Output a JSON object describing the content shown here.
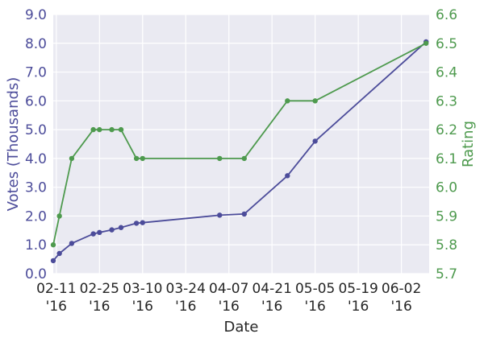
{
  "chart_data": {
    "type": "line",
    "xlabel": "Date",
    "x_ticks": [
      {
        "date": "2016-02-11",
        "label_line1": "02-11",
        "label_line2": "'16"
      },
      {
        "date": "2016-02-25",
        "label_line1": "02-25",
        "label_line2": "'16"
      },
      {
        "date": "2016-03-10",
        "label_line1": "03-10",
        "label_line2": "'16"
      },
      {
        "date": "2016-03-24",
        "label_line1": "03-24",
        "label_line2": "'16"
      },
      {
        "date": "2016-04-07",
        "label_line1": "04-07",
        "label_line2": "'16"
      },
      {
        "date": "2016-04-21",
        "label_line1": "04-21",
        "label_line2": "'16"
      },
      {
        "date": "2016-05-05",
        "label_line1": "05-05",
        "label_line2": "'16"
      },
      {
        "date": "2016-05-19",
        "label_line1": "05-19",
        "label_line2": "'16"
      },
      {
        "date": "2016-06-02",
        "label_line1": "06-02",
        "label_line2": "'16"
      }
    ],
    "xlim": [
      "2016-02-10",
      "2016-06-11"
    ],
    "grid": true,
    "left_axis": {
      "label": "Votes (Thousands)",
      "ylim": [
        0,
        9
      ],
      "ticks": [
        "0.0",
        "1.0",
        "2.0",
        "3.0",
        "4.0",
        "5.0",
        "6.0",
        "7.0",
        "8.0",
        "9.0"
      ],
      "color": "#4c4c9a"
    },
    "right_axis": {
      "label": "Rating",
      "ylim": [
        5.7,
        6.6
      ],
      "ticks": [
        "5.7",
        "5.8",
        "5.9",
        "6.0",
        "6.1",
        "6.2",
        "6.3",
        "6.4",
        "6.5",
        "6.6"
      ],
      "color": "#4e9a4e"
    },
    "series": [
      {
        "axis": "left",
        "color": "#4c4c9a",
        "points": [
          {
            "x": "2016-02-10",
            "y": 0.45
          },
          {
            "x": "2016-02-12",
            "y": 0.7
          },
          {
            "x": "2016-02-16",
            "y": 1.05
          },
          {
            "x": "2016-02-23",
            "y": 1.38
          },
          {
            "x": "2016-02-25",
            "y": 1.43
          },
          {
            "x": "2016-02-29",
            "y": 1.52
          },
          {
            "x": "2016-03-03",
            "y": 1.6
          },
          {
            "x": "2016-03-08",
            "y": 1.75
          },
          {
            "x": "2016-03-10",
            "y": 1.77
          },
          {
            "x": "2016-04-04",
            "y": 2.03
          },
          {
            "x": "2016-04-12",
            "y": 2.07
          },
          {
            "x": "2016-04-26",
            "y": 3.4
          },
          {
            "x": "2016-05-05",
            "y": 4.6
          },
          {
            "x": "2016-06-10",
            "y": 8.05
          }
        ]
      },
      {
        "axis": "right",
        "color": "#4e9a4e",
        "points": [
          {
            "x": "2016-02-10",
            "y": 5.8
          },
          {
            "x": "2016-02-12",
            "y": 5.9
          },
          {
            "x": "2016-02-16",
            "y": 6.1
          },
          {
            "x": "2016-02-23",
            "y": 6.2
          },
          {
            "x": "2016-02-25",
            "y": 6.2
          },
          {
            "x": "2016-02-29",
            "y": 6.2
          },
          {
            "x": "2016-03-03",
            "y": 6.2
          },
          {
            "x": "2016-03-08",
            "y": 6.1
          },
          {
            "x": "2016-03-10",
            "y": 6.1
          },
          {
            "x": "2016-04-04",
            "y": 6.1
          },
          {
            "x": "2016-04-12",
            "y": 6.1
          },
          {
            "x": "2016-04-26",
            "y": 6.3
          },
          {
            "x": "2016-05-05",
            "y": 6.3
          },
          {
            "x": "2016-06-10",
            "y": 6.5
          }
        ]
      }
    ]
  }
}
